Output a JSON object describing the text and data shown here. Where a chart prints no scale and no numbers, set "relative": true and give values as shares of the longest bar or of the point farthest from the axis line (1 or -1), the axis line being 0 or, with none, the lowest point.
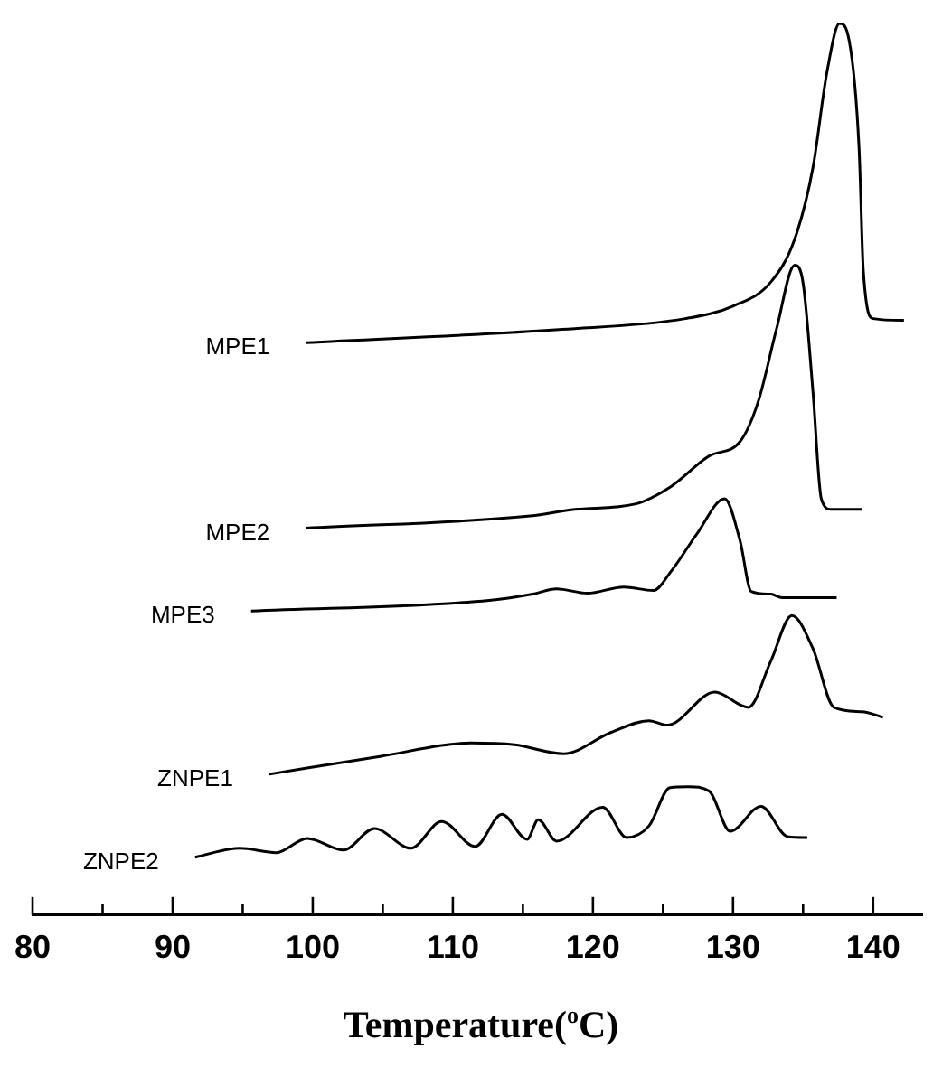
{
  "chart_data": {
    "type": "line",
    "relative": true,
    "xlabel": "Temperature($^{o}$C)",
    "xlim": [
      80,
      143.5
    ],
    "xticks": [
      80,
      {
        "value": 85,
        "label": null
      },
      90,
      {
        "value": 95,
        "label": null
      },
      100,
      {
        "value": 105,
        "label": null
      },
      110,
      {
        "value": 115,
        "label": null
      },
      120,
      {
        "value": 125,
        "label": null
      },
      130,
      {
        "value": 135,
        "label": null
      },
      140
    ],
    "series": [
      {
        "name": "MPE1",
        "color": "#000000",
        "x": [
          99.5,
          117.8,
          126.6,
          130.0,
          132.7,
          134.4,
          135.7,
          136.7,
          137.6,
          138.3,
          139.0,
          139.3,
          140.0,
          142.2
        ],
        "values": [
          0.642,
          0.657,
          0.669,
          0.683,
          0.71,
          0.758,
          0.838,
          0.945,
          1,
          0.98,
          0.859,
          0.723,
          0.669,
          0.667
        ]
      },
      {
        "name": "MPE2",
        "color": "#000000",
        "x": [
          99.5,
          115.7,
          118.7,
          123.0,
          125.6,
          128.3,
          130.5,
          131.8,
          133.1,
          134.4,
          135.0,
          135.7,
          136.3,
          137.0,
          139.2
        ],
        "values": [
          0.434,
          0.448,
          0.455,
          0.461,
          0.481,
          0.515,
          0.531,
          0.576,
          0.657,
          0.729,
          0.709,
          0.588,
          0.467,
          0.455,
          0.455
        ]
      },
      {
        "name": "MPE3",
        "color": "#000000",
        "x": [
          95.6,
          112.6,
          115.7,
          117.4,
          119.6,
          122.2,
          124.3,
          125.6,
          127.4,
          129.4,
          130.5,
          131.3,
          132.7,
          133.5,
          137.4
        ],
        "values": [
          0.341,
          0.353,
          0.36,
          0.366,
          0.361,
          0.368,
          0.364,
          0.386,
          0.427,
          0.467,
          0.42,
          0.363,
          0.36,
          0.356,
          0.356
        ]
      },
      {
        "name": "ZNPE1",
        "color": "#000000",
        "x": [
          96.9,
          104.8,
          111.3,
          114.4,
          117.9,
          121.3,
          124.0,
          125.3,
          128.7,
          131.1,
          132.7,
          134.2,
          135.7,
          137.2,
          139.2,
          140.7
        ],
        "values": [
          0.158,
          0.178,
          0.193,
          0.191,
          0.181,
          0.205,
          0.218,
          0.213,
          0.25,
          0.233,
          0.285,
          0.336,
          0.299,
          0.233,
          0.228,
          0.222
        ]
      },
      {
        "name": "ZNPE2",
        "color": "#000000",
        "x": [
          91.6,
          94.8,
          97.4,
          99.6,
          102.2,
          104.4,
          107.0,
          109.2,
          111.6,
          113.5,
          115.3,
          116.1,
          117.4,
          120.7,
          122.4,
          124.0,
          125.5,
          126.8,
          128.3,
          129.8,
          132.0,
          133.9,
          135.3
        ],
        "values": [
          0.065,
          0.075,
          0.07,
          0.086,
          0.073,
          0.097,
          0.075,
          0.105,
          0.077,
          0.113,
          0.085,
          0.107,
          0.083,
          0.121,
          0.087,
          0.1,
          0.143,
          0.144,
          0.139,
          0.094,
          0.122,
          0.088,
          0.087
        ]
      }
    ]
  }
}
